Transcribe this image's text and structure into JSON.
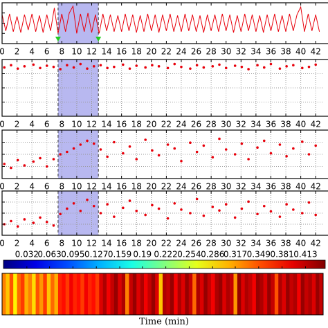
{
  "chart_data": [
    {
      "type": "line",
      "color": "#e8000b",
      "xlim": [
        0,
        43
      ],
      "ylim": [
        -1.2,
        1.2
      ],
      "xticks": [
        0,
        2,
        4,
        6,
        8,
        10,
        12,
        14,
        16,
        18,
        20,
        22,
        24,
        26,
        28,
        30,
        32,
        34,
        36,
        38,
        40,
        42
      ],
      "highlight": [
        7.5,
        12.9
      ],
      "arrow_color": "#22cc22",
      "x": [
        0,
        0.5,
        1,
        1.5,
        2,
        2.5,
        3,
        3.5,
        4,
        4.5,
        5,
        5.5,
        6,
        6.5,
        7,
        7.5,
        8,
        8.5,
        9,
        9.5,
        10,
        10.5,
        11,
        11.5,
        12,
        12.5,
        13,
        13.5,
        14,
        14.5,
        15,
        15.5,
        16,
        16.5,
        17,
        17.5,
        18,
        18.5,
        19,
        19.5,
        20,
        20.5,
        21,
        21.5,
        22,
        22.5,
        23,
        23.5,
        24,
        24.5,
        25,
        25.5,
        26,
        26.5,
        27,
        27.5,
        28,
        28.5,
        29,
        29.5,
        30,
        30.5,
        31,
        31.5,
        32,
        32.5,
        33,
        33.5,
        34,
        34.5,
        35,
        35.5,
        36,
        36.5,
        37,
        37.5,
        38,
        38.5,
        39,
        39.5,
        40,
        40.5,
        41,
        41.5,
        42,
        42.5
      ],
      "values": [
        0.5,
        -0.45,
        0.55,
        -0.5,
        0.4,
        -0.55,
        0.5,
        -0.4,
        0.55,
        -0.5,
        0.45,
        -0.55,
        0.5,
        -0.45,
        0.9,
        -0.6,
        0.55,
        -0.5,
        0.6,
        1.0,
        -0.6,
        0.55,
        -0.5,
        0.6,
        -0.55,
        0.5,
        -0.6,
        0.55,
        -0.45,
        0.5,
        -0.5,
        0.45,
        -0.5,
        0.55,
        -0.45,
        0.5,
        -0.55,
        0.45,
        -0.5,
        0.55,
        -0.45,
        0.5,
        -0.55,
        0.5,
        -0.45,
        0.55,
        -0.5,
        0.45,
        -0.5,
        0.55,
        -0.45,
        0.5,
        -0.5,
        0.45,
        -0.55,
        0.5,
        -0.45,
        0.5,
        -0.5,
        0.55,
        -0.45,
        0.5,
        -0.55,
        0.45,
        -0.5,
        0.55,
        -0.45,
        0.5,
        -0.5,
        0.45,
        -0.55,
        0.5,
        -0.45,
        0.55,
        -0.5,
        0.45,
        -0.5,
        0.55,
        -0.45,
        0.5,
        0.95,
        -0.5,
        0.55,
        -0.45,
        0.5,
        -0.5
      ]
    },
    {
      "type": "scatter",
      "color": "#e8000b",
      "xlim": [
        0,
        43
      ],
      "ylim": [
        0,
        1
      ],
      "grid": true,
      "xticks": [
        0,
        2,
        4,
        6,
        8,
        10,
        12,
        14,
        16,
        18,
        20,
        22,
        24,
        26,
        28,
        30,
        32,
        34,
        36,
        38,
        40,
        42
      ],
      "highlight": [
        7.5,
        12.9
      ],
      "x": [
        0.3,
        1.2,
        2.1,
        3.0,
        4.2,
        5.1,
        6.0,
        6.9,
        7.8,
        8.7,
        9.6,
        10.5,
        11.4,
        12.3,
        13.2,
        14.1,
        15.0,
        16.2,
        17.1,
        18.0,
        19.2,
        20.1,
        21.0,
        22.2,
        23.1,
        24.0,
        25.2,
        26.1,
        27.0,
        28.2,
        29.1,
        30.0,
        31.2,
        32.1,
        33.0,
        34.2,
        35.1,
        36.0,
        37.2,
        38.1,
        39.0,
        40.2,
        41.1,
        42.0
      ],
      "values": [
        0.86,
        0.9,
        0.84,
        0.88,
        0.91,
        0.85,
        0.89,
        0.87,
        0.83,
        0.9,
        0.86,
        0.92,
        0.84,
        0.88,
        0.9,
        0.85,
        0.87,
        0.91,
        0.84,
        0.89,
        0.86,
        0.9,
        0.88,
        0.85,
        0.92,
        0.87,
        0.84,
        0.9,
        0.86,
        0.88,
        0.91,
        0.85,
        0.89,
        0.87,
        0.83,
        0.9,
        0.86,
        0.92,
        0.84,
        0.88,
        0.9,
        0.85,
        0.87,
        0.91
      ]
    },
    {
      "type": "scatter",
      "color": "#e8000b",
      "xlim": [
        0,
        43
      ],
      "ylim": [
        0,
        1
      ],
      "grid": true,
      "xticks": [
        0,
        2,
        4,
        6,
        8,
        10,
        12,
        14,
        16,
        18,
        20,
        22,
        24,
        26,
        28,
        30,
        32,
        34,
        36,
        38,
        40,
        42
      ],
      "highlight": [
        7.5,
        12.9
      ],
      "x": [
        0.3,
        1.2,
        2.1,
        3.0,
        4.2,
        5.1,
        6.0,
        6.9,
        7.8,
        8.7,
        9.6,
        10.5,
        11.4,
        12.3,
        13.2,
        14.1,
        15.0,
        16.2,
        17.1,
        18.0,
        19.2,
        20.1,
        21.0,
        22.2,
        23.1,
        24.0,
        25.2,
        26.1,
        27.0,
        28.2,
        29.1,
        30.0,
        31.2,
        32.1,
        33.0,
        34.2,
        35.1,
        36.0,
        37.2,
        38.1,
        39.0,
        40.2,
        41.1,
        42.0
      ],
      "values": [
        0.3,
        0.22,
        0.38,
        0.27,
        0.35,
        0.42,
        0.25,
        0.4,
        0.5,
        0.55,
        0.62,
        0.7,
        0.78,
        0.72,
        0.6,
        0.45,
        0.75,
        0.52,
        0.66,
        0.4,
        0.8,
        0.58,
        0.48,
        0.7,
        0.62,
        0.36,
        0.74,
        0.55,
        0.68,
        0.44,
        0.82,
        0.6,
        0.5,
        0.72,
        0.4,
        0.64,
        0.78,
        0.52,
        0.7,
        0.46,
        0.62,
        0.76,
        0.5,
        0.68
      ]
    },
    {
      "type": "scatter",
      "color": "#e8000b",
      "xlim": [
        0,
        43
      ],
      "ylim": [
        0,
        1
      ],
      "grid": true,
      "xticks": [
        0,
        2,
        4,
        6,
        8,
        10,
        12,
        14,
        16,
        18,
        20,
        22,
        24,
        26,
        28,
        30,
        32,
        34,
        36,
        38,
        40,
        42
      ],
      "highlight": [
        7.5,
        12.9
      ],
      "x": [
        0.3,
        1.2,
        2.1,
        3.0,
        4.2,
        5.1,
        6.0,
        6.9,
        7.8,
        8.7,
        9.6,
        10.5,
        11.4,
        12.3,
        13.2,
        14.1,
        15.0,
        16.2,
        17.1,
        18.0,
        19.2,
        20.1,
        21.0,
        22.2,
        23.1,
        24.0,
        25.2,
        26.1,
        27.0,
        28.2,
        29.1,
        30.0,
        31.2,
        32.1,
        33.0,
        34.2,
        35.1,
        36.0,
        37.2,
        38.1,
        39.0,
        40.2,
        41.1,
        42.0
      ],
      "values": [
        0.25,
        0.32,
        0.2,
        0.36,
        0.28,
        0.4,
        0.3,
        0.22,
        0.48,
        0.6,
        0.72,
        0.55,
        0.8,
        0.66,
        0.5,
        0.7,
        0.42,
        0.62,
        0.78,
        0.55,
        0.46,
        0.68,
        0.6,
        0.38,
        0.72,
        0.58,
        0.5,
        0.82,
        0.44,
        0.64,
        0.56,
        0.7,
        0.4,
        0.6,
        0.76,
        0.48,
        0.66,
        0.54,
        0.42,
        0.7,
        0.58,
        0.5,
        0.74,
        0.46
      ]
    },
    {
      "type": "colorbar",
      "colormap": "jet",
      "xlim": [
        0,
        0.44
      ],
      "xticks": [
        0.032,
        0.063,
        0.095,
        0.127,
        0.159,
        0.19,
        0.222,
        0.254,
        0.286,
        0.317,
        0.349,
        0.381,
        0.413
      ]
    },
    {
      "type": "heatmap",
      "colormap": "jet",
      "clim": [
        0,
        0.44
      ],
      "xlim": [
        0,
        43
      ],
      "xlabel": "Time (min)",
      "x": [
        0,
        0.5,
        1,
        1.5,
        2,
        2.5,
        3,
        3.5,
        4,
        4.5,
        5,
        5.5,
        6,
        6.5,
        7,
        7.5,
        8,
        8.5,
        9,
        9.5,
        10,
        10.5,
        11,
        11.5,
        12,
        12.5,
        13,
        13.5,
        14,
        14.5,
        15,
        15.5,
        16,
        16.5,
        17,
        17.5,
        18,
        18.5,
        19,
        19.5,
        20,
        20.5,
        21,
        21.5,
        22,
        22.5,
        23,
        23.5,
        24,
        24.5,
        25,
        25.5,
        26,
        26.5,
        27,
        27.5,
        28,
        28.5,
        29,
        29.5,
        30,
        30.5,
        31,
        31.5,
        32,
        32.5,
        33,
        33.5,
        34,
        34.5,
        35,
        35.5,
        36,
        36.5,
        37,
        37.5,
        38,
        38.5,
        39,
        39.5,
        40,
        40.5,
        41,
        41.5,
        42,
        42.5
      ],
      "values": [
        0.33,
        0.3,
        0.35,
        0.28,
        0.34,
        0.36,
        0.31,
        0.33,
        0.29,
        0.35,
        0.32,
        0.36,
        0.3,
        0.34,
        0.31,
        0.37,
        0.38,
        0.36,
        0.39,
        0.37,
        0.38,
        0.36,
        0.39,
        0.37,
        0.38,
        0.36,
        0.4,
        0.42,
        0.39,
        0.41,
        0.43,
        0.4,
        0.42,
        0.33,
        0.41,
        0.43,
        0.4,
        0.42,
        0.39,
        0.41,
        0.43,
        0.4,
        0.3,
        0.42,
        0.41,
        0.43,
        0.39,
        0.42,
        0.4,
        0.43,
        0.41,
        0.34,
        0.42,
        0.4,
        0.43,
        0.41,
        0.39,
        0.42,
        0.43,
        0.4,
        0.42,
        0.41,
        0.32,
        0.43,
        0.4,
        0.42,
        0.41,
        0.39,
        0.43,
        0.42,
        0.4,
        0.43,
        0.41,
        0.35,
        0.42,
        0.4,
        0.43,
        0.41,
        0.42,
        0.39,
        0.43,
        0.41,
        0.42,
        0.4,
        0.43,
        0.41
      ]
    }
  ]
}
